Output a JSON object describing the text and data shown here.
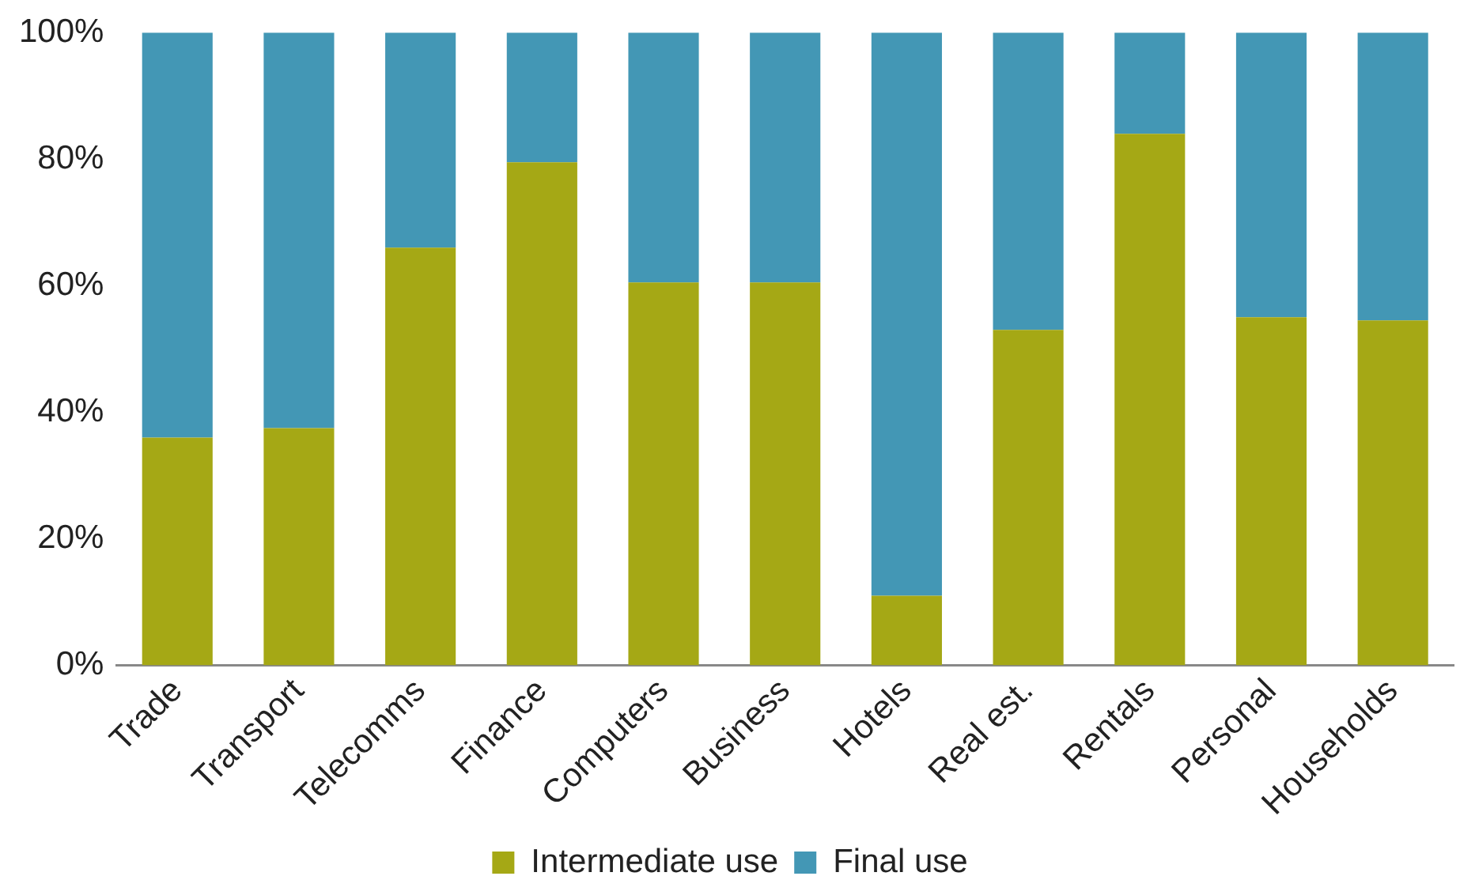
{
  "chart_data": {
    "type": "bar",
    "stacked": true,
    "categories": [
      "Trade",
      "Transport",
      "Telecomms",
      "Finance",
      "Computers",
      "Business",
      "Hotels",
      "Real est.",
      "Rentals",
      "Personal",
      "Households"
    ],
    "series": [
      {
        "name": "Intermediate use",
        "color": "#a5a815",
        "values": [
          36,
          37.5,
          66,
          79.5,
          60.5,
          60.5,
          11,
          53,
          84,
          55,
          54.5
        ]
      },
      {
        "name": "Final use",
        "color": "#4397b5",
        "values": [
          64,
          62.5,
          34,
          20.5,
          39.5,
          39.5,
          89,
          47,
          16,
          45,
          45.5
        ]
      }
    ],
    "ylim": [
      0,
      100
    ],
    "yticks": [
      {
        "value": 0,
        "label": "0%"
      },
      {
        "value": 20,
        "label": "20%"
      },
      {
        "value": 40,
        "label": "40%"
      },
      {
        "value": 60,
        "label": "60%"
      },
      {
        "value": 80,
        "label": "80%"
      },
      {
        "value": 100,
        "label": "100%"
      }
    ],
    "grid": false,
    "legend": "bottom"
  }
}
